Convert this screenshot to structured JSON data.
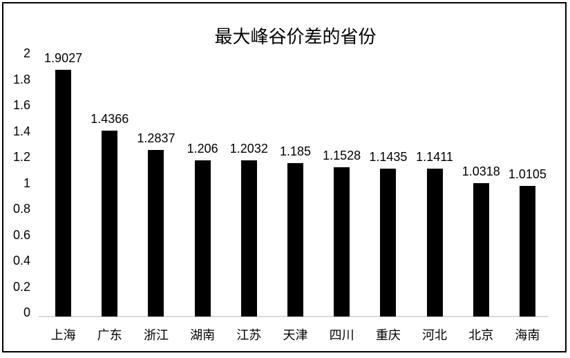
{
  "chart_data": {
    "type": "bar",
    "title": "最大峰谷价差的省份",
    "categories": [
      "上海",
      "广东",
      "浙江",
      "湖南",
      "江苏",
      "天津",
      "四川",
      "重庆",
      "河北",
      "北京",
      "海南"
    ],
    "values": [
      1.9027,
      1.4366,
      1.2837,
      1.206,
      1.2032,
      1.185,
      1.1528,
      1.1435,
      1.1411,
      1.0318,
      1.0105
    ],
    "data_labels": [
      "1.9027",
      "1.4366",
      "1.2837",
      "1.206",
      "1.2032",
      "1.185",
      "1.1528",
      "1.1435",
      "1.1411",
      "1.0318",
      "1.0105"
    ],
    "y_ticks": [
      "2",
      "1.8",
      "1.6",
      "1.4",
      "1.2",
      "1",
      "0.8",
      "0.6",
      "0.4",
      "0.2",
      "0"
    ],
    "ylim": [
      0,
      2
    ],
    "xlabel": "",
    "ylabel": "",
    "grid": "off",
    "legend": "none",
    "bar_color": "#000000",
    "axis_line_color": "#d9d9d9",
    "border_color": "#000000",
    "background_color": "#ffffff"
  }
}
